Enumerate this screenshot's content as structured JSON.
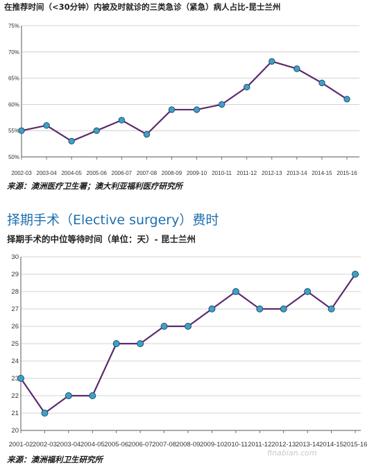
{
  "chart_data": [
    {
      "type": "line",
      "title": "在推荐时间（<30分钟）内被及时就诊的三类急诊（紧急）病人占比-昆士兰州",
      "categories": [
        "2002-03",
        "2003-04",
        "2004-05",
        "2005-06",
        "2006-07",
        "2007-08",
        "2008-09",
        "2009-10",
        "2010-11",
        "2011-12",
        "2012-13",
        "2013-14",
        "2014-15",
        "2015-16"
      ],
      "series": [
        {
          "values": [
            55,
            56,
            53,
            55,
            57,
            54.3,
            59,
            59,
            60,
            63.3,
            68.2,
            66.8,
            64.1,
            61
          ]
        }
      ],
      "ylim": [
        50,
        75
      ],
      "yticks": [
        "50%",
        "55%",
        "60%",
        "65%",
        "70%",
        "75%"
      ],
      "grid": "y",
      "line_color": "#5b2a6e",
      "marker_color": "#3fa0c8",
      "source": "来源：澳洲医疗卫生署；澳大利亚福利医疗研究所"
    },
    {
      "type": "line",
      "title": "择期手术的中位等待时间（单位：天）- 昆士兰州",
      "categories": [
        "2001-02",
        "2002-03",
        "2003-04",
        "2004-05",
        "2005-06",
        "2006-07",
        "2007-08",
        "2008-09",
        "2009-10",
        "2010-11",
        "2011-12",
        "2012-13",
        "2013-14",
        "2014-15",
        "2015-16"
      ],
      "series": [
        {
          "values": [
            23,
            21,
            22,
            22,
            25,
            25,
            26,
            26,
            27,
            28,
            27,
            27,
            28,
            27,
            29
          ]
        }
      ],
      "ylim": [
        20,
        30
      ],
      "yticks": [
        "20",
        "21",
        "22",
        "23",
        "24",
        "25",
        "26",
        "27",
        "28",
        "29",
        "30"
      ],
      "grid": "y",
      "line_color": "#5b2a6e",
      "marker_color": "#3fa0c8",
      "source": "来源：澳洲福利卫生研究所"
    }
  ],
  "section_title": "择期手术（Elective surgery）费时",
  "watermark": "finabian.com"
}
